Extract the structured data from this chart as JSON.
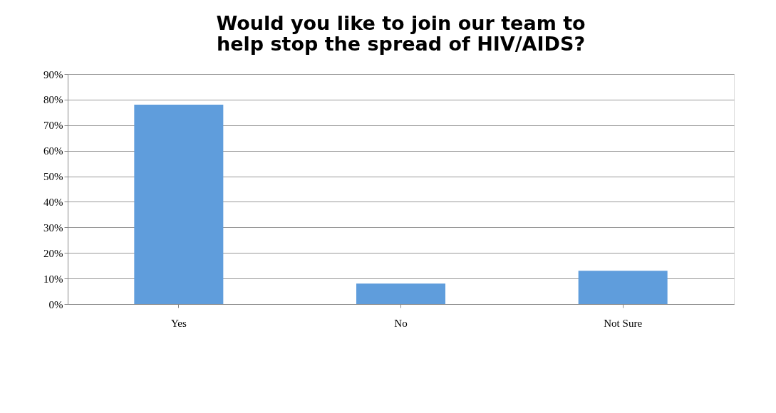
{
  "chart_data": {
    "type": "bar",
    "title": [
      "Would you like to join our team to",
      "help stop the spread of HIV/AIDS?"
    ],
    "categories": [
      "Yes",
      "No",
      "Not Sure"
    ],
    "values": [
      78,
      8,
      13
    ],
    "color": "#5f9ddc",
    "ylim": [
      0,
      90
    ],
    "yticks": [
      {
        "value": 0,
        "label": "0%"
      },
      {
        "value": 10,
        "label": "10%"
      },
      {
        "value": 20,
        "label": "20%"
      },
      {
        "value": 30,
        "label": "30%"
      },
      {
        "value": 40,
        "label": "40%"
      },
      {
        "value": 50,
        "label": "50%"
      },
      {
        "value": 60,
        "label": "60%"
      },
      {
        "value": 70,
        "label": "70%"
      },
      {
        "value": 80,
        "label": "80%"
      },
      {
        "value": 90,
        "label": "90%"
      }
    ],
    "grid": "y"
  }
}
